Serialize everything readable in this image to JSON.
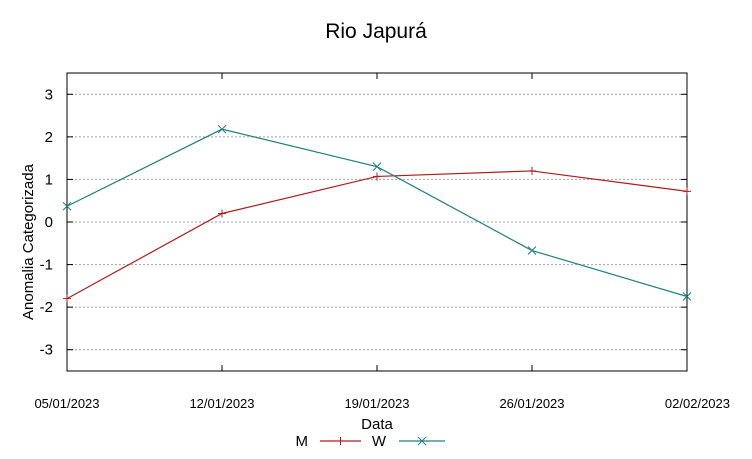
{
  "chart_data": {
    "type": "line",
    "title": "Rio Japurá",
    "xlabel": "Data",
    "ylabel": "Anomalia Categorizada",
    "categories": [
      "05/01/2023",
      "12/01/2023",
      "19/01/2023",
      "26/01/2023",
      "02/02/2023"
    ],
    "ylim": [
      -3.5,
      3.5
    ],
    "yticks": [
      "3",
      "2",
      "1",
      "0",
      "-1",
      "-2",
      "-3"
    ],
    "ytick_values": [
      3,
      2,
      1,
      0,
      -1,
      -2,
      -3
    ],
    "grid": true,
    "legend_position": "bottom-center",
    "series": [
      {
        "name": "M",
        "values": [
          -1.8,
          0.2,
          1.07,
          1.2,
          0.72
        ],
        "color": "#b01c1c",
        "marker": "plus"
      },
      {
        "name": "W",
        "values": [
          0.37,
          2.18,
          1.3,
          -0.67,
          -1.75
        ],
        "color": "#1f7f7f",
        "marker": "x"
      }
    ]
  }
}
